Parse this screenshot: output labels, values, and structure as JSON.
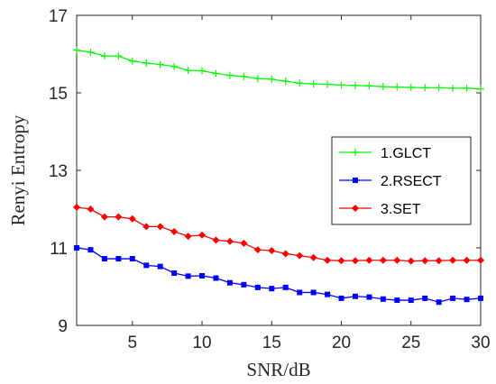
{
  "chart_data": {
    "type": "line",
    "xlabel": "SNR/dB",
    "ylabel": "Renyi Entropy",
    "xlim": [
      1,
      30
    ],
    "ylim": [
      9,
      17
    ],
    "xticks": [
      5,
      10,
      15,
      20,
      25,
      30
    ],
    "yticks": [
      9,
      11,
      13,
      15,
      17
    ],
    "grid": false,
    "legend_position": "right",
    "x": [
      1,
      2,
      3,
      4,
      5,
      6,
      7,
      8,
      9,
      10,
      11,
      12,
      13,
      14,
      15,
      16,
      17,
      18,
      19,
      20,
      21,
      22,
      23,
      24,
      25,
      26,
      27,
      28,
      29,
      30
    ],
    "series": [
      {
        "name": "1.GLCT",
        "color": "#00ff00",
        "marker": "plus",
        "values": [
          16.1,
          16.05,
          15.95,
          15.95,
          15.82,
          15.77,
          15.73,
          15.68,
          15.58,
          15.57,
          15.5,
          15.45,
          15.42,
          15.37,
          15.35,
          15.3,
          15.25,
          15.23,
          15.22,
          15.2,
          15.19,
          15.18,
          15.16,
          15.15,
          15.14,
          15.13,
          15.13,
          15.12,
          15.12,
          15.1
        ]
      },
      {
        "name": "2.RSECT",
        "color": "#0000ff",
        "marker": "square",
        "values": [
          11.0,
          10.95,
          10.72,
          10.72,
          10.72,
          10.55,
          10.52,
          10.35,
          10.27,
          10.28,
          10.22,
          10.1,
          10.05,
          9.98,
          9.95,
          9.98,
          9.85,
          9.85,
          9.8,
          9.7,
          9.75,
          9.73,
          9.68,
          9.65,
          9.65,
          9.7,
          9.6,
          9.7,
          9.67,
          9.7
        ]
      },
      {
        "name": "3.SET",
        "color": "#ff0000",
        "marker": "diamond",
        "values": [
          12.05,
          12.0,
          11.8,
          11.8,
          11.75,
          11.55,
          11.55,
          11.42,
          11.3,
          11.33,
          11.2,
          11.17,
          11.12,
          10.95,
          10.93,
          10.85,
          10.8,
          10.75,
          10.68,
          10.67,
          10.67,
          10.68,
          10.68,
          10.68,
          10.66,
          10.67,
          10.67,
          10.68,
          10.68,
          10.68
        ]
      }
    ]
  }
}
